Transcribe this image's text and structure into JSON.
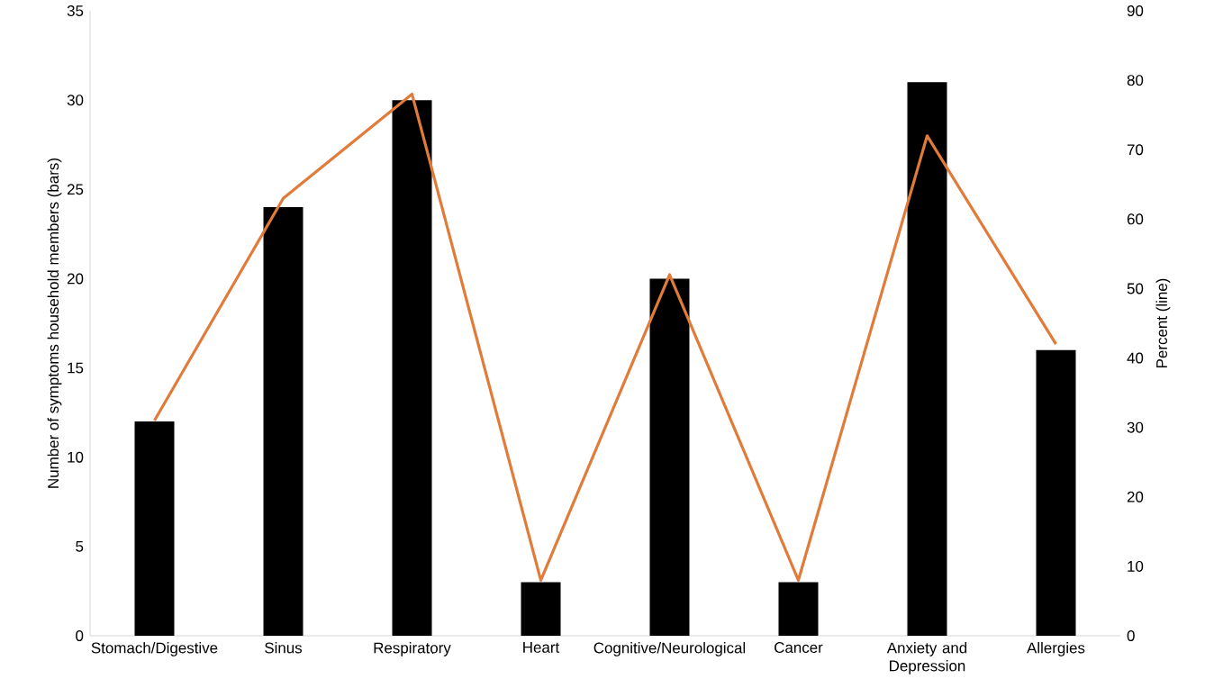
{
  "chart_data": {
    "type": "bar",
    "categories": [
      "Stomach/Digestive",
      "Sinus",
      "Respiratory",
      "Heart",
      "Cognitive/Neurological",
      "Cancer",
      "Anxiety and Depression",
      "Allergies"
    ],
    "series": [
      {
        "color": "#000000",
        "values": [
          12,
          24,
          30,
          3,
          20,
          3,
          31,
          16
        ]
      },
      {
        "type": "line",
        "axis": "y2",
        "color": "#e07b39",
        "values": [
          31,
          63,
          78,
          8,
          52,
          8,
          72,
          42
        ]
      }
    ],
    "ylabel": "Number of symptoms household members (bars)",
    "y2label": "Percent (line)",
    "ylim": [
      0,
      35
    ],
    "yticks": [
      0,
      5,
      10,
      15,
      20,
      25,
      30,
      35
    ],
    "y2lim": [
      0,
      90
    ],
    "y2ticks": [
      0,
      10,
      20,
      30,
      40,
      50,
      60,
      70,
      80,
      90
    ]
  }
}
